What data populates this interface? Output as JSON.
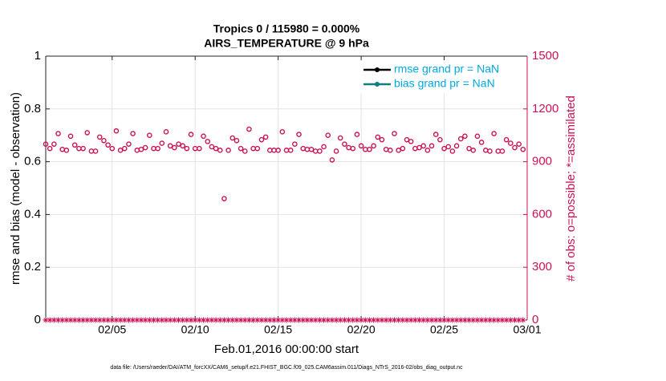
{
  "chart_data": {
    "type": "scatter",
    "title": "Tropics 0 / 115980 = 0.000%",
    "subtitle": "AIRS_TEMPERATURE @ 9 hPa",
    "ylabel": "rmse and bias (model - observation)",
    "y2label": "# of obs: o=possible; *=assimilated",
    "xlabel": "Feb.01,2016 00:00:00 start",
    "footnote": "data file: /Users/raeder/DAI/ATM_forcXX/CAM6_setup/f.e21.FHIST_BGC.f09_025.CAM6assim.011/Diags_NTrS_2016-02/obs_diag_output.nc",
    "xlim": [
      0,
      29
    ],
    "xticks": [
      {
        "value": 4,
        "label": "02/05"
      },
      {
        "value": 9,
        "label": "02/10"
      },
      {
        "value": 14,
        "label": "02/15"
      },
      {
        "value": 19,
        "label": "02/20"
      },
      {
        "value": 24,
        "label": "02/25"
      },
      {
        "value": 29,
        "label": "03/01"
      }
    ],
    "ylim": [
      0,
      1
    ],
    "yticks": [
      0,
      0.2,
      0.4,
      0.6,
      0.8,
      1
    ],
    "y2lim": [
      0,
      1500
    ],
    "y2ticks": [
      0,
      300,
      600,
      900,
      1200,
      1500
    ],
    "grid": true,
    "legend_position": "upper right",
    "legend": [
      {
        "name": "rmse grand pr = NaN",
        "color": "#000000"
      },
      {
        "name": "bias grand pr = NaN",
        "color": "#0f7f7f"
      }
    ],
    "x": [
      0,
      0.25,
      0.5,
      0.75,
      1,
      1.25,
      1.5,
      1.75,
      2,
      2.25,
      2.5,
      2.75,
      3,
      3.25,
      3.5,
      3.75,
      4,
      4.25,
      4.5,
      4.75,
      5,
      5.25,
      5.5,
      5.75,
      6,
      6.25,
      6.5,
      6.75,
      7,
      7.25,
      7.5,
      7.75,
      8,
      8.25,
      8.5,
      8.75,
      9,
      9.25,
      9.5,
      9.75,
      10,
      10.25,
      10.5,
      10.75,
      11,
      11.25,
      11.5,
      11.75,
      12,
      12.25,
      12.5,
      12.75,
      13,
      13.25,
      13.5,
      13.75,
      14,
      14.25,
      14.5,
      14.75,
      15,
      15.25,
      15.5,
      15.75,
      16,
      16.25,
      16.5,
      16.75,
      17,
      17.25,
      17.5,
      17.75,
      18,
      18.25,
      18.5,
      18.75,
      19,
      19.25,
      19.5,
      19.75,
      20,
      20.25,
      20.5,
      20.75,
      21,
      21.25,
      21.5,
      21.75,
      22,
      22.25,
      22.5,
      22.75,
      23,
      23.25,
      23.5,
      23.75,
      24,
      24.25,
      24.5,
      24.75,
      25,
      25.25,
      25.5,
      25.75,
      26,
      26.25,
      26.5,
      26.75,
      27,
      27.25,
      27.5,
      27.75,
      28,
      28.25,
      28.5,
      28.75
    ],
    "series": [
      {
        "color": "#cc1155",
        "axis": "y2",
        "marker": "circle",
        "values": [
          1000,
          975,
          1000,
          1060,
          970,
          965,
          1045,
          995,
          975,
          975,
          1065,
          960,
          960,
          1040,
          1020,
          995,
          975,
          1075,
          965,
          975,
          1000,
          1060,
          965,
          970,
          980,
          1050,
          975,
          975,
          1005,
          1070,
          990,
          980,
          1000,
          990,
          975,
          1055,
          975,
          975,
          1045,
          1015,
          985,
          975,
          965,
          690,
          965,
          1035,
          1020,
          975,
          960,
          1085,
          975,
          975,
          1025,
          1040,
          965,
          965,
          965,
          1070,
          965,
          965,
          1000,
          1055,
          975,
          970,
          970,
          960,
          960,
          985,
          1050,
          910,
          960,
          1035,
          1000,
          980,
          975,
          1055,
          990,
          970,
          970,
          990,
          1040,
          1025,
          970,
          965,
          1060,
          965,
          975,
          1025,
          1015,
          975,
          980,
          990,
          965,
          990,
          1055,
          1025,
          975,
          985,
          960,
          990,
          1030,
          1045,
          975,
          965,
          1045,
          1010,
          965,
          960,
          1060,
          960,
          960,
          1025,
          1005,
          980,
          1000,
          970
        ]
      },
      {
        "color": "#cc1155",
        "axis": "y2",
        "marker": "asterisk",
        "values": [
          0,
          0,
          0,
          0,
          0,
          0,
          0,
          0,
          0,
          0,
          0,
          0,
          0,
          0,
          0,
          0,
          0,
          0,
          0,
          0,
          0,
          0,
          0,
          0,
          0,
          0,
          0,
          0,
          0,
          0,
          0,
          0,
          0,
          0,
          0,
          0,
          0,
          0,
          0,
          0,
          0,
          0,
          0,
          0,
          0,
          0,
          0,
          0,
          0,
          0,
          0,
          0,
          0,
          0,
          0,
          0,
          0,
          0,
          0,
          0,
          0,
          0,
          0,
          0,
          0,
          0,
          0,
          0,
          0,
          0,
          0,
          0,
          0,
          0,
          0,
          0,
          0,
          0,
          0,
          0,
          0,
          0,
          0,
          0,
          0,
          0,
          0,
          0,
          0,
          0,
          0,
          0,
          0,
          0,
          0,
          0,
          0,
          0,
          0,
          0,
          0,
          0,
          0,
          0,
          0,
          0,
          0,
          0,
          0,
          0,
          0,
          0,
          0,
          0,
          0,
          0
        ]
      }
    ]
  }
}
